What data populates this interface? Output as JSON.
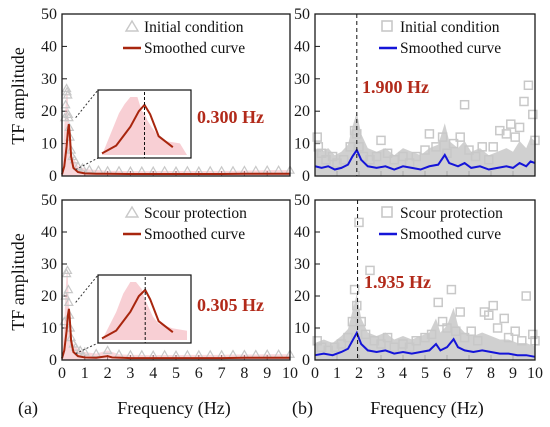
{
  "figure": {
    "y_axis_label": "TF amplitude",
    "x_axis_label": "Frequency (Hz)",
    "panel_labels": [
      "(a)",
      "(b)"
    ]
  },
  "colors": {
    "scatter_gray": "#c8c8c8",
    "band_pink": "#f4b6bd",
    "smoothed_dark_red": "#a8260e",
    "smoothed_blue": "#1515d8",
    "peak_text": "#b22a1a",
    "axis": "#1a1a1a"
  },
  "chart_data": [
    {
      "id": "a-top",
      "type": "line",
      "legend": [
        "Initial condition",
        "Smoothed curve"
      ],
      "marker": "triangle",
      "peak_label": "0.300 Hz",
      "peak_freq": 0.3,
      "xlim": [
        0,
        10
      ],
      "ylim": [
        0,
        50
      ],
      "xticks": [
        0,
        1,
        2,
        3,
        4,
        5,
        6,
        7,
        8,
        9,
        10
      ],
      "yticks": [
        0,
        10,
        20,
        30,
        40,
        50
      ],
      "scatter": [
        [
          0.12,
          18
        ],
        [
          0.16,
          22
        ],
        [
          0.2,
          27
        ],
        [
          0.22,
          26
        ],
        [
          0.25,
          25
        ],
        [
          0.28,
          19
        ],
        [
          0.3,
          18
        ],
        [
          0.32,
          15
        ],
        [
          0.35,
          12
        ],
        [
          0.4,
          8
        ],
        [
          0.45,
          6
        ],
        [
          0.55,
          5
        ],
        [
          0.7,
          3
        ],
        [
          0.9,
          2.5
        ],
        [
          1.2,
          2
        ],
        [
          1.6,
          1.8
        ],
        [
          2.0,
          1.6
        ],
        [
          2.5,
          1.6
        ],
        [
          3,
          1.5
        ],
        [
          3.5,
          1.5
        ],
        [
          4,
          1.5
        ],
        [
          4.5,
          1.6
        ],
        [
          5,
          1.5
        ],
        [
          5.5,
          1.6
        ],
        [
          6,
          1.5
        ],
        [
          6.5,
          1.6
        ],
        [
          7,
          1.6
        ],
        [
          7.5,
          1.6
        ],
        [
          8,
          1.7
        ],
        [
          8.5,
          1.7
        ],
        [
          9,
          1.8
        ],
        [
          9.5,
          1.8
        ],
        [
          10,
          1.8
        ]
      ],
      "smoothed": [
        [
          0,
          0.5
        ],
        [
          0.1,
          3
        ],
        [
          0.2,
          9
        ],
        [
          0.26,
          14
        ],
        [
          0.3,
          16
        ],
        [
          0.34,
          13
        ],
        [
          0.4,
          6
        ],
        [
          0.5,
          2.5
        ],
        [
          0.7,
          1.2
        ],
        [
          1,
          0.8
        ],
        [
          1.5,
          0.7
        ],
        [
          2,
          0.7
        ],
        [
          3,
          0.6
        ],
        [
          4,
          0.6
        ],
        [
          5,
          0.6
        ],
        [
          6,
          0.6
        ],
        [
          7,
          0.6
        ],
        [
          8,
          0.7
        ],
        [
          9,
          0.7
        ],
        [
          10,
          0.7
        ]
      ]
    },
    {
      "id": "b-top",
      "type": "line",
      "legend": [
        "Initial condition",
        "Smoothed curve"
      ],
      "marker": "square",
      "peak_label": "1.900 Hz",
      "peak_freq": 1.9,
      "xlim": [
        0,
        10
      ],
      "ylim": [
        0,
        50
      ],
      "xticks": [
        0,
        1,
        2,
        3,
        4,
        5,
        6,
        7,
        8,
        9,
        10
      ],
      "yticks": [
        0,
        10,
        20,
        30,
        40,
        50
      ],
      "scatter": [
        [
          0.1,
          12
        ],
        [
          0.15,
          9
        ],
        [
          0.3,
          7
        ],
        [
          0.5,
          5
        ],
        [
          0.8,
          6
        ],
        [
          1.0,
          4
        ],
        [
          1.3,
          5
        ],
        [
          1.6,
          9
        ],
        [
          1.8,
          14
        ],
        [
          1.9,
          13
        ],
        [
          2.0,
          9
        ],
        [
          2.2,
          6
        ],
        [
          2.5,
          5
        ],
        [
          2.8,
          6
        ],
        [
          3.0,
          11
        ],
        [
          3.3,
          7
        ],
        [
          3.6,
          5
        ],
        [
          4.0,
          6
        ],
        [
          4.3,
          4
        ],
        [
          4.6,
          6
        ],
        [
          5.0,
          8
        ],
        [
          5.2,
          13
        ],
        [
          5.5,
          9
        ],
        [
          5.8,
          12
        ],
        [
          6.0,
          7
        ],
        [
          6.3,
          10
        ],
        [
          6.6,
          12
        ],
        [
          6.8,
          22
        ],
        [
          7.0,
          8
        ],
        [
          7.3,
          6
        ],
        [
          7.6,
          9
        ],
        [
          7.9,
          5
        ],
        [
          8.1,
          9
        ],
        [
          8.4,
          14
        ],
        [
          8.7,
          13
        ],
        [
          8.9,
          16
        ],
        [
          9.1,
          12
        ],
        [
          9.3,
          15
        ],
        [
          9.5,
          23
        ],
        [
          9.7,
          28
        ],
        [
          9.9,
          19
        ],
        [
          10,
          11
        ]
      ],
      "smoothed": [
        [
          0,
          3
        ],
        [
          0.3,
          2.5
        ],
        [
          0.6,
          3
        ],
        [
          0.9,
          2
        ],
        [
          1.2,
          2.5
        ],
        [
          1.5,
          3.5
        ],
        [
          1.7,
          6
        ],
        [
          1.9,
          8
        ],
        [
          2.1,
          5
        ],
        [
          2.4,
          3
        ],
        [
          2.8,
          2.5
        ],
        [
          3.2,
          3
        ],
        [
          3.6,
          2
        ],
        [
          4.0,
          3
        ],
        [
          4.4,
          2.5
        ],
        [
          4.8,
          2
        ],
        [
          5.2,
          3
        ],
        [
          5.6,
          3.5
        ],
        [
          5.9,
          6.5
        ],
        [
          6.1,
          4
        ],
        [
          6.5,
          3
        ],
        [
          6.8,
          4
        ],
        [
          7.1,
          2.5
        ],
        [
          7.5,
          3
        ],
        [
          7.9,
          2
        ],
        [
          8.3,
          2.5
        ],
        [
          8.7,
          3
        ],
        [
          9.0,
          2.5
        ],
        [
          9.3,
          4
        ],
        [
          9.6,
          3
        ],
        [
          9.8,
          4.5
        ],
        [
          10,
          4
        ]
      ]
    },
    {
      "id": "a-bottom",
      "type": "line",
      "legend": [
        "Scour protection",
        "Smoothed curve"
      ],
      "marker": "triangle",
      "peak_label": "0.305 Hz",
      "peak_freq": 0.305,
      "xlim": [
        0,
        10
      ],
      "ylim": [
        0,
        50
      ],
      "xticks": [
        0,
        1,
        2,
        3,
        4,
        5,
        6,
        7,
        8,
        9,
        10
      ],
      "yticks": [
        0,
        10,
        20,
        30,
        40,
        50
      ],
      "scatter": [
        [
          0.1,
          12
        ],
        [
          0.15,
          20
        ],
        [
          0.2,
          27
        ],
        [
          0.24,
          28
        ],
        [
          0.28,
          22
        ],
        [
          0.3,
          18
        ],
        [
          0.33,
          14
        ],
        [
          0.36,
          10
        ],
        [
          0.4,
          7
        ],
        [
          0.5,
          5
        ],
        [
          0.6,
          4
        ],
        [
          0.8,
          3
        ],
        [
          1.0,
          2.5
        ],
        [
          1.5,
          2
        ],
        [
          2.0,
          3
        ],
        [
          2.5,
          1.8
        ],
        [
          3,
          1.6
        ],
        [
          3.5,
          1.6
        ],
        [
          4,
          1.5
        ],
        [
          4.5,
          1.6
        ],
        [
          5,
          1.5
        ],
        [
          5.5,
          1.6
        ],
        [
          6,
          1.6
        ],
        [
          6.5,
          1.6
        ],
        [
          7,
          1.6
        ],
        [
          7.5,
          1.7
        ],
        [
          8,
          1.7
        ],
        [
          8.5,
          1.7
        ],
        [
          9,
          1.8
        ],
        [
          9.5,
          1.8
        ],
        [
          10,
          1.8
        ]
      ],
      "smoothed": [
        [
          0,
          0.5
        ],
        [
          0.1,
          3
        ],
        [
          0.2,
          9
        ],
        [
          0.26,
          14
        ],
        [
          0.305,
          16
        ],
        [
          0.34,
          13
        ],
        [
          0.4,
          6
        ],
        [
          0.5,
          2.5
        ],
        [
          0.7,
          1.2
        ],
        [
          1,
          0.8
        ],
        [
          1.5,
          0.7
        ],
        [
          2,
          1.2
        ],
        [
          2.2,
          0.8
        ],
        [
          3,
          0.6
        ],
        [
          4,
          0.6
        ],
        [
          5,
          0.6
        ],
        [
          6,
          0.6
        ],
        [
          7,
          0.6
        ],
        [
          8,
          0.7
        ],
        [
          9,
          0.7
        ],
        [
          10,
          0.7
        ]
      ]
    },
    {
      "id": "b-bottom",
      "type": "line",
      "legend": [
        "Scour protection",
        "Smoothed curve"
      ],
      "marker": "square",
      "peak_label": "1.935 Hz",
      "peak_freq": 1.935,
      "xlim": [
        0,
        10
      ],
      "ylim": [
        0,
        50
      ],
      "xticks": [
        0,
        1,
        2,
        3,
        4,
        5,
        6,
        7,
        8,
        9,
        10
      ],
      "yticks": [
        0,
        10,
        20,
        30,
        40,
        50
      ],
      "scatter": [
        [
          0.1,
          6
        ],
        [
          0.3,
          4
        ],
        [
          0.6,
          3
        ],
        [
          0.9,
          4
        ],
        [
          1.2,
          5
        ],
        [
          1.5,
          7
        ],
        [
          1.7,
          12
        ],
        [
          1.8,
          22
        ],
        [
          1.9,
          17
        ],
        [
          2.0,
          43
        ],
        [
          2.1,
          12
        ],
        [
          2.3,
          8
        ],
        [
          2.5,
          28
        ],
        [
          2.7,
          6
        ],
        [
          3.0,
          5
        ],
        [
          3.3,
          7
        ],
        [
          3.6,
          4
        ],
        [
          4.0,
          5
        ],
        [
          4.3,
          4
        ],
        [
          4.6,
          6
        ],
        [
          5.0,
          7
        ],
        [
          5.3,
          8
        ],
        [
          5.6,
          18
        ],
        [
          5.8,
          12
        ],
        [
          6.0,
          10
        ],
        [
          6.2,
          22
        ],
        [
          6.4,
          9
        ],
        [
          6.6,
          15
        ],
        [
          6.8,
          7
        ],
        [
          7.1,
          9
        ],
        [
          7.4,
          6
        ],
        [
          7.7,
          15
        ],
        [
          7.9,
          14
        ],
        [
          8.1,
          17
        ],
        [
          8.3,
          10
        ],
        [
          8.6,
          13
        ],
        [
          8.8,
          7
        ],
        [
          9.1,
          9
        ],
        [
          9.4,
          6
        ],
        [
          9.6,
          20
        ],
        [
          9.9,
          8
        ],
        [
          10,
          6
        ]
      ],
      "smoothed": [
        [
          0,
          1.5
        ],
        [
          0.4,
          2
        ],
        [
          0.8,
          1.5
        ],
        [
          1.2,
          2.5
        ],
        [
          1.5,
          3.5
        ],
        [
          1.7,
          6
        ],
        [
          1.9,
          8.5
        ],
        [
          2.1,
          5
        ],
        [
          2.4,
          3
        ],
        [
          2.8,
          2.5
        ],
        [
          3.2,
          3
        ],
        [
          3.6,
          2
        ],
        [
          4.0,
          2.5
        ],
        [
          4.4,
          2
        ],
        [
          4.8,
          2.5
        ],
        [
          5.2,
          3
        ],
        [
          5.5,
          5
        ],
        [
          5.7,
          3
        ],
        [
          6.0,
          4
        ],
        [
          6.3,
          6.5
        ],
        [
          6.5,
          4
        ],
        [
          6.8,
          3
        ],
        [
          7.2,
          2.5
        ],
        [
          7.6,
          3
        ],
        [
          8.0,
          2.5
        ],
        [
          8.4,
          2
        ],
        [
          8.8,
          2
        ],
        [
          9.2,
          1.5
        ],
        [
          9.6,
          1.5
        ],
        [
          10,
          1
        ]
      ]
    }
  ]
}
